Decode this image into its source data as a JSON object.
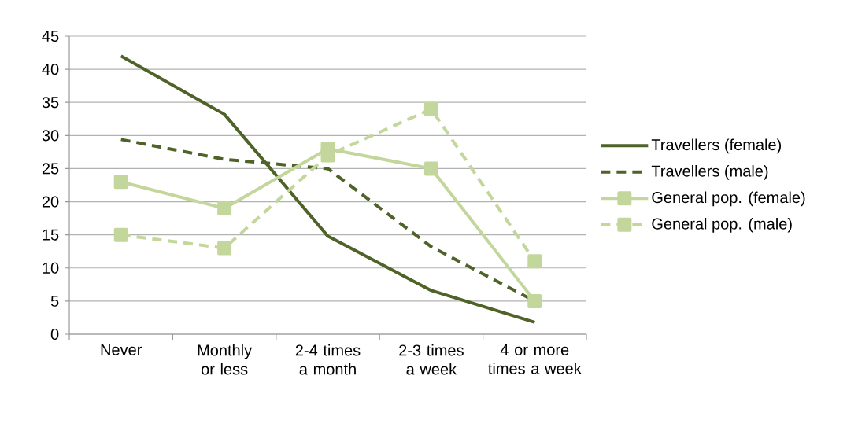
{
  "chart_data": {
    "type": "line",
    "categories": [
      "Never",
      "Monthly or less",
      "2-4 times a month",
      "2-3 times a week",
      "4 or more times a week"
    ],
    "series": [
      {
        "name": "Travellers (female)",
        "color": "#4f6228",
        "values": [
          42,
          33.2,
          14.8,
          6.6,
          1.8
        ],
        "marker": "none",
        "line_style": "solid"
      },
      {
        "name": "Travellers (male)",
        "color": "#4f6228",
        "values": [
          29.4,
          26.4,
          25,
          13.2,
          5
        ],
        "marker": "none",
        "line_style": "dashed"
      },
      {
        "name": "General pop. (female)",
        "color": "#c3d69b",
        "values": [
          23,
          19,
          28,
          25,
          5
        ],
        "marker": "square",
        "line_style": "solid"
      },
      {
        "name": "General pop. (male)",
        "color": "#c3d69b",
        "values": [
          15,
          13,
          27,
          34,
          11
        ],
        "marker": "square",
        "line_style": "dashed"
      }
    ],
    "ylim": [
      0,
      45
    ],
    "yticks": [
      0,
      5,
      10,
      15,
      20,
      25,
      30,
      35,
      40,
      45
    ],
    "grid": "y",
    "legend": "right"
  }
}
